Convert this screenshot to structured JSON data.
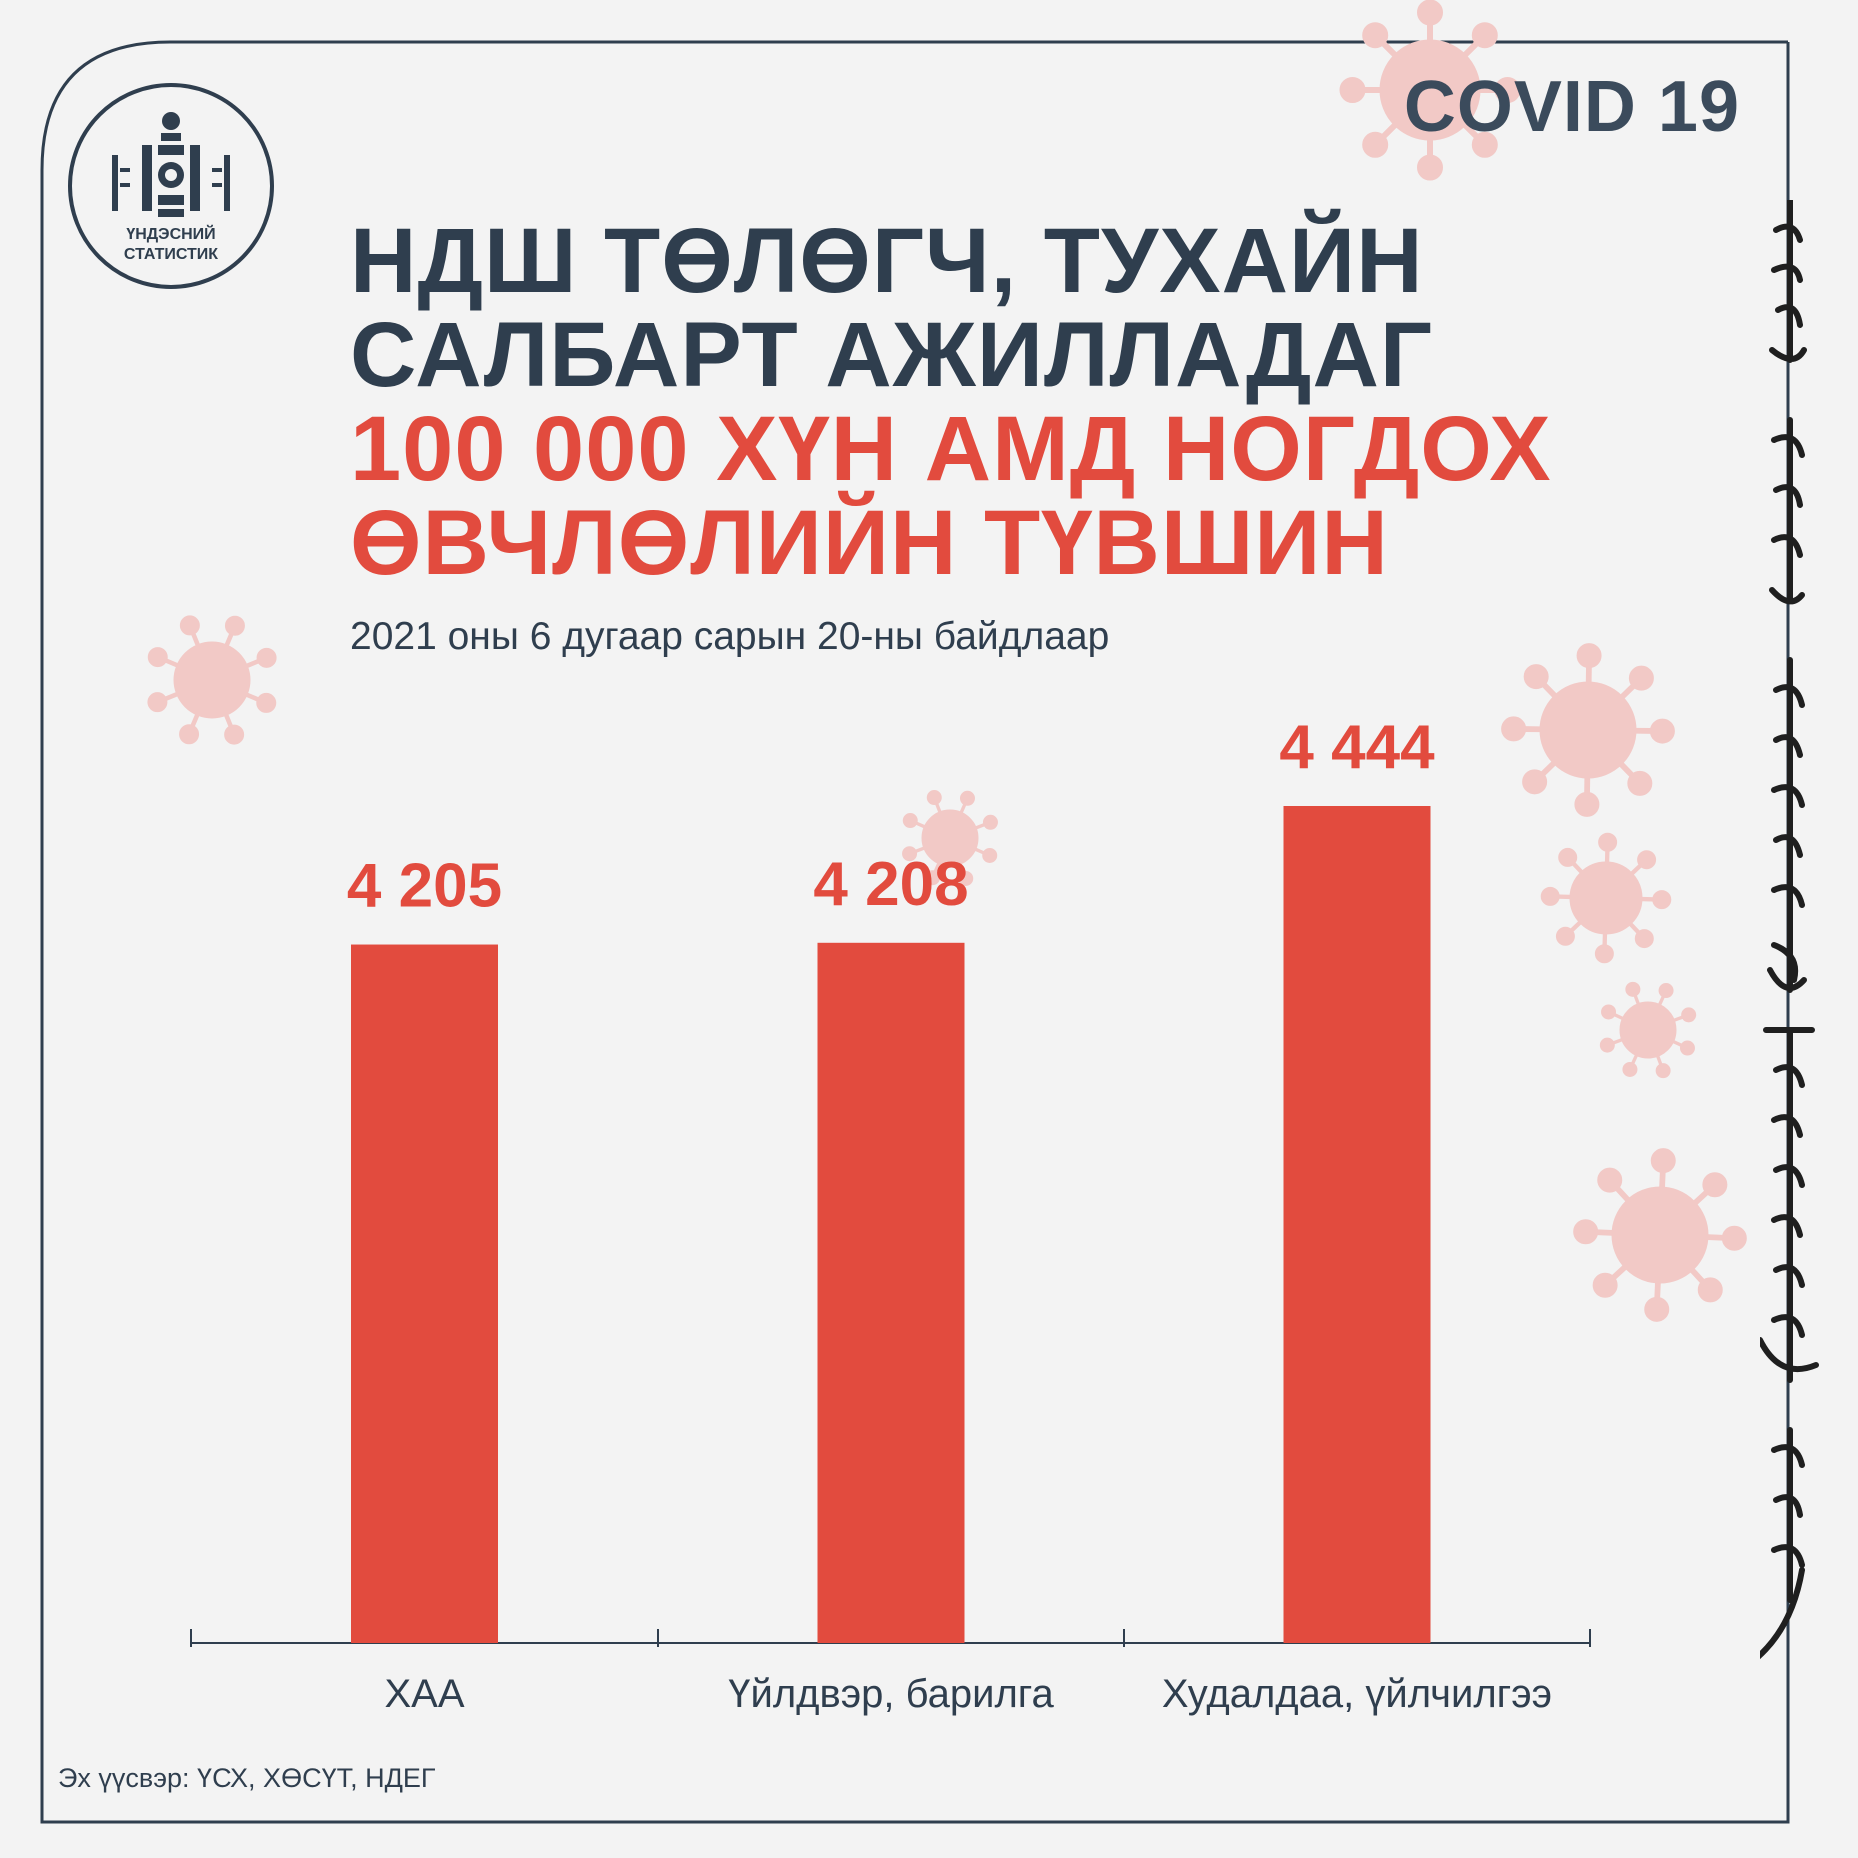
{
  "colors": {
    "accent": "#e24b3e",
    "dark": "#2f3e4e",
    "virus": "#f2c9c6",
    "background": "#f3f3f3"
  },
  "logo": {
    "line1": "ҮНДЭСНИЙ",
    "line2": "СТАТИСТИК",
    "icon": "national-emblem-icon"
  },
  "badge": "COVID 19",
  "title": {
    "line1": "НДШ ТӨЛӨГЧ, ТУХАЙН",
    "line2": "САЛБАРТ АЖИЛЛАДАГ",
    "line3": "100 000 ХҮН АМД НОГДОХ",
    "line4": "ӨВЧЛӨЛИЙН ТҮВШИН"
  },
  "subtitle": "2021 оны 6 дугаар сарын 20-ны байдлаар",
  "source": "Эх үүсвэр: ҮСХ, ХӨСҮТ, НДЕГ",
  "chart_data": {
    "type": "bar",
    "categories": [
      "ХАА",
      "Үйлдвэр, барилга",
      "Худалдаа, үйлчилгээ"
    ],
    "values": [
      4205,
      4208,
      4444
    ],
    "value_labels": [
      "4 205",
      "4 208",
      "4 444"
    ],
    "bar_color": "#e24b3e",
    "grid": false
  }
}
